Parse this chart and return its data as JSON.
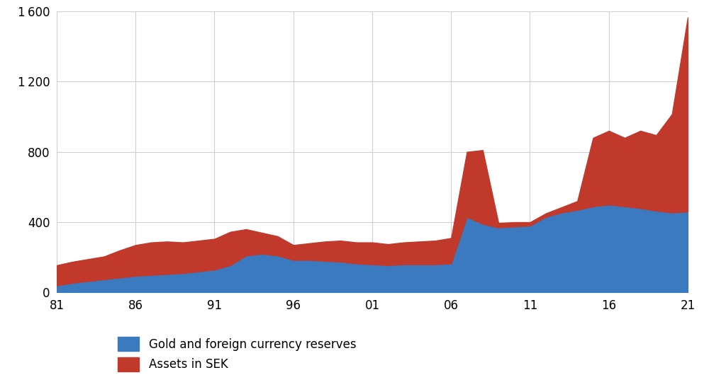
{
  "years": [
    1981,
    1982,
    1983,
    1984,
    1985,
    1986,
    1987,
    1988,
    1989,
    1990,
    1991,
    1992,
    1993,
    1994,
    1995,
    1996,
    1997,
    1998,
    1999,
    2000,
    2001,
    2002,
    2003,
    2004,
    2005,
    2006,
    2007,
    2008,
    2009,
    2010,
    2011,
    2012,
    2013,
    2014,
    2015,
    2016,
    2017,
    2018,
    2019,
    2020,
    2021
  ],
  "gold_foreign": [
    40,
    55,
    65,
    75,
    85,
    95,
    100,
    105,
    110,
    120,
    130,
    155,
    210,
    220,
    210,
    185,
    185,
    180,
    175,
    165,
    160,
    155,
    160,
    160,
    160,
    165,
    430,
    390,
    370,
    375,
    380,
    430,
    455,
    470,
    490,
    500,
    490,
    480,
    465,
    455,
    460
  ],
  "assets_sek": [
    115,
    120,
    125,
    130,
    155,
    175,
    185,
    185,
    175,
    175,
    175,
    190,
    150,
    120,
    110,
    85,
    95,
    110,
    120,
    120,
    125,
    120,
    125,
    130,
    135,
    145,
    370,
    420,
    25,
    25,
    20,
    20,
    30,
    50,
    390,
    420,
    390,
    440,
    430,
    560,
    1105
  ],
  "color_gold": "#3b7abf",
  "color_sek": "#c0392b",
  "ylim": [
    0,
    1600
  ],
  "yticks": [
    0,
    400,
    800,
    1200,
    1600
  ],
  "ytick_labels": [
    "0",
    "400",
    "800",
    "1 200",
    "1 600"
  ],
  "xtick_positions": [
    1981,
    1986,
    1991,
    1996,
    2001,
    2006,
    2011,
    2016,
    2021
  ],
  "xtick_labels": [
    "81",
    "86",
    "91",
    "96",
    "01",
    "06",
    "11",
    "16",
    "21"
  ],
  "legend_gold": "Gold and foreign currency reserves",
  "legend_sek": "Assets in SEK",
  "background_color": "#ffffff",
  "grid_color": "#d0d0d0"
}
